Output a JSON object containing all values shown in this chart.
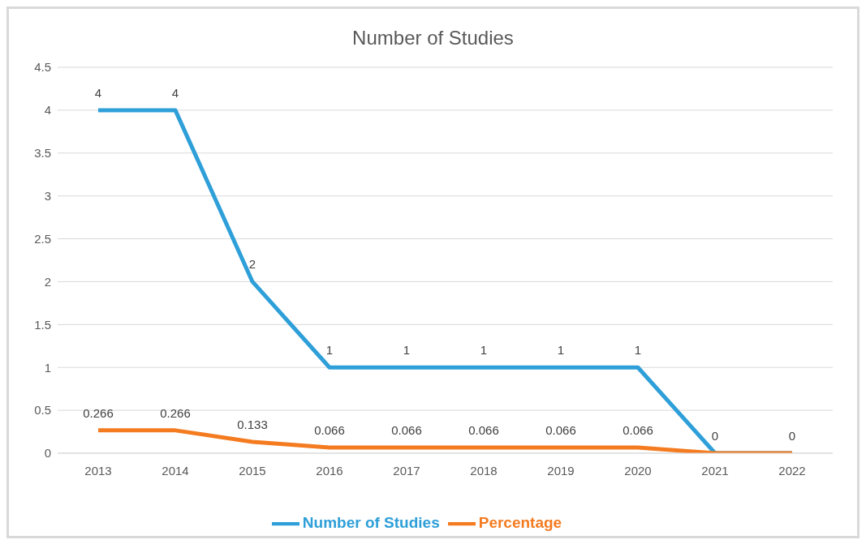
{
  "chart_data": {
    "type": "line",
    "title": "Number of Studies",
    "categories": [
      "2013",
      "2014",
      "2015",
      "2016",
      "2017",
      "2018",
      "2019",
      "2020",
      "2021",
      "2022"
    ],
    "series": [
      {
        "name": "Number of Studies",
        "color": "#2e9fd8",
        "values": [
          4,
          4,
          2,
          1,
          1,
          1,
          1,
          1,
          0,
          0
        ],
        "value_labels": [
          "4",
          "4",
          "2",
          "1",
          "1",
          "1",
          "1",
          "1",
          "0",
          "0"
        ]
      },
      {
        "name": "Percentage",
        "color": "#f47b20",
        "values": [
          0.266,
          0.266,
          0.133,
          0.066,
          0.066,
          0.066,
          0.066,
          0.066,
          0,
          0
        ],
        "value_labels": [
          "0.266",
          "0.266",
          "0.133",
          "0.066",
          "0.066",
          "0.066",
          "0.066",
          "0.066",
          null,
          null
        ]
      }
    ],
    "ylim": [
      0,
      4.5
    ],
    "yticks": [
      0,
      0.5,
      1,
      1.5,
      2,
      2.5,
      3,
      3.5,
      4,
      4.5
    ],
    "grid": "y",
    "legend": "bottom",
    "marker": "none",
    "line_style": "solid"
  }
}
